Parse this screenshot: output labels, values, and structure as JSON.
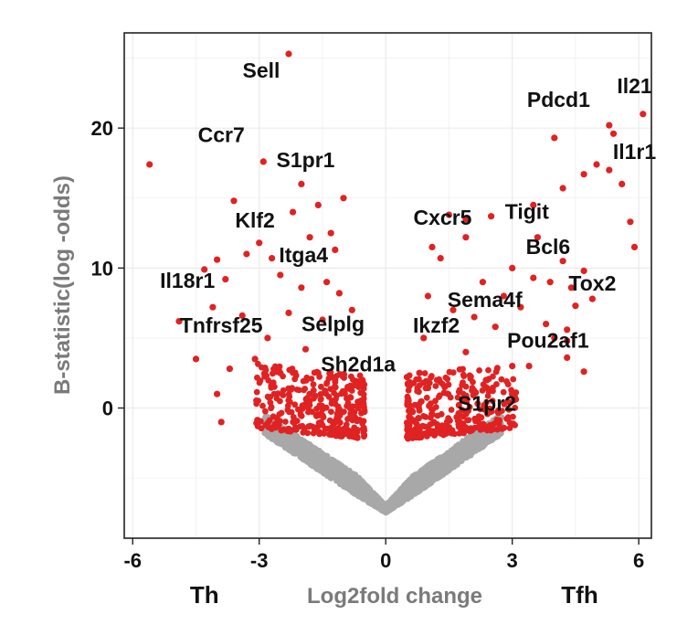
{
  "chart_data": {
    "type": "scatter",
    "title": "",
    "xlabel": "Log2fold change",
    "ylabel": "B-statistic(log -odds)",
    "xlim": [
      -6.2,
      6.3
    ],
    "ylim": [
      -9.3,
      26.8
    ],
    "x_ticks": [
      -6,
      -3,
      0,
      3,
      6
    ],
    "x_tick_labels": [
      "-6",
      "-3",
      "0",
      "3",
      "6"
    ],
    "y_ticks": [
      0,
      10,
      20
    ],
    "y_tick_labels": [
      "0",
      "10",
      "20"
    ],
    "grid": true,
    "legend": "none",
    "group_labels": [
      {
        "text": "Th",
        "x": -4.3
      },
      {
        "text": "Tfh",
        "x": 4.6
      }
    ],
    "colors": {
      "significant": "#e02222",
      "not_significant": "#a8a8a8",
      "grid": "#ebebeb",
      "frame": "#222222"
    },
    "series": [
      {
        "color": "#e02222",
        "points": [
          [
            -2.3,
            25.3
          ],
          [
            -5.6,
            17.4
          ],
          [
            -2.9,
            17.6
          ],
          [
            -2.0,
            16.0
          ],
          [
            -3.6,
            14.8
          ],
          [
            -1.0,
            15.0
          ],
          [
            -1.6,
            14.5
          ],
          [
            -2.2,
            14.0
          ],
          [
            -1.3,
            12.5
          ],
          [
            -1.8,
            12.2
          ],
          [
            -3.0,
            11.8
          ],
          [
            -4.0,
            10.6
          ],
          [
            -3.3,
            11.0
          ],
          [
            -1.2,
            11.3
          ],
          [
            -2.7,
            10.7
          ],
          [
            -4.3,
            9.9
          ],
          [
            -3.8,
            9.2
          ],
          [
            -2.5,
            9.5
          ],
          [
            -1.4,
            9.0
          ],
          [
            -2.0,
            8.6
          ],
          [
            -4.1,
            7.2
          ],
          [
            -3.4,
            6.6
          ],
          [
            -4.9,
            6.2
          ],
          [
            -2.3,
            6.8
          ],
          [
            -1.5,
            6.3
          ],
          [
            -4.5,
            3.5
          ],
          [
            -3.7,
            2.8
          ],
          [
            -4.0,
            1.0
          ],
          [
            -3.9,
            -1.0
          ],
          [
            -1.1,
            8.2
          ],
          [
            -0.8,
            7.0
          ],
          [
            -2.8,
            5.0
          ],
          [
            -1.9,
            4.2
          ],
          [
            -3.1,
            3.5
          ],
          [
            -1.2,
            2.0
          ],
          [
            -2.5,
            2.5
          ],
          [
            -0.9,
            1.5
          ],
          [
            -1.8,
            1.0
          ],
          [
            4.0,
            19.3
          ],
          [
            5.3,
            20.2
          ],
          [
            5.4,
            19.6
          ],
          [
            6.1,
            21.0
          ],
          [
            5.3,
            17.0
          ],
          [
            4.7,
            16.7
          ],
          [
            5.0,
            17.4
          ],
          [
            5.6,
            16.0
          ],
          [
            4.2,
            15.7
          ],
          [
            3.5,
            14.5
          ],
          [
            5.8,
            13.3
          ],
          [
            5.9,
            11.5
          ],
          [
            2.5,
            13.7
          ],
          [
            1.9,
            13.5
          ],
          [
            1.5,
            13.8
          ],
          [
            1.9,
            12.2
          ],
          [
            3.6,
            12.2
          ],
          [
            1.1,
            11.5
          ],
          [
            1.3,
            10.7
          ],
          [
            4.2,
            10.5
          ],
          [
            4.7,
            9.8
          ],
          [
            3.9,
            9.0
          ],
          [
            3.5,
            9.3
          ],
          [
            3.0,
            10.0
          ],
          [
            4.4,
            8.6
          ],
          [
            4.9,
            7.8
          ],
          [
            4.5,
            7.3
          ],
          [
            2.3,
            9.0
          ],
          [
            2.8,
            8.0
          ],
          [
            3.2,
            7.2
          ],
          [
            4.3,
            5.6
          ],
          [
            4.0,
            5.0
          ],
          [
            3.8,
            6.0
          ],
          [
            4.3,
            4.8
          ],
          [
            4.7,
            2.6
          ],
          [
            4.3,
            3.6
          ],
          [
            3.4,
            3.0
          ],
          [
            2.1,
            6.5
          ],
          [
            1.0,
            8.0
          ],
          [
            1.6,
            7.0
          ],
          [
            2.6,
            5.8
          ],
          [
            0.9,
            5.0
          ],
          [
            1.9,
            4.0
          ],
          [
            3.0,
            3.0
          ],
          [
            2.4,
            2.0
          ],
          [
            1.4,
            1.5
          ],
          [
            0.8,
            2.5
          ]
        ]
      }
    ],
    "labels": [
      {
        "text": "Sell",
        "x": -2.95,
        "y": 23.6
      },
      {
        "text": "Pdcd1",
        "x": 4.1,
        "y": 21.5
      },
      {
        "text": "Il21",
        "x": 5.9,
        "y": 22.5
      },
      {
        "text": "Ccr7",
        "x": -3.9,
        "y": 19.0
      },
      {
        "text": "S1pr1",
        "x": -1.9,
        "y": 17.2
      },
      {
        "text": "Il1r1",
        "x": 5.9,
        "y": 17.8
      },
      {
        "text": "Klf2",
        "x": -3.1,
        "y": 12.9
      },
      {
        "text": "Cxcr5",
        "x": 1.35,
        "y": 13.1
      },
      {
        "text": "Tigit",
        "x": 3.35,
        "y": 13.5
      },
      {
        "text": "Itga4",
        "x": -1.95,
        "y": 10.4
      },
      {
        "text": "Bcl6",
        "x": 3.85,
        "y": 11.0
      },
      {
        "text": "Il18r1",
        "x": -4.7,
        "y": 8.6
      },
      {
        "text": "Tox2",
        "x": 4.9,
        "y": 8.4
      },
      {
        "text": "Sema4f",
        "x": 2.35,
        "y": 7.2
      },
      {
        "text": "Tnfrsf25",
        "x": -3.9,
        "y": 5.4
      },
      {
        "text": "Selplg",
        "x": -1.25,
        "y": 5.5
      },
      {
        "text": "Ikzf2",
        "x": 1.2,
        "y": 5.4
      },
      {
        "text": "Pou2af1",
        "x": 3.85,
        "y": 4.3
      },
      {
        "text": "Sh2d1a",
        "x": -0.65,
        "y": 2.6
      },
      {
        "text": "S1pr2",
        "x": 2.4,
        "y": -0.2
      }
    ]
  }
}
